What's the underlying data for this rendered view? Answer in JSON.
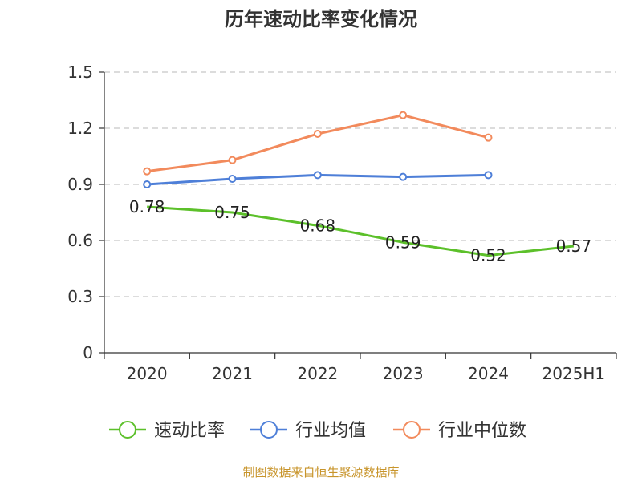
{
  "chart_data": {
    "type": "line",
    "title": "历年速动比率变化情况",
    "categories": [
      "2020",
      "2021",
      "2022",
      "2023",
      "2024",
      "2025H1"
    ],
    "ylim": [
      0,
      1.5
    ],
    "yticks": [
      "0",
      "0.3",
      "0.6",
      "0.9",
      "1.2",
      "1.5"
    ],
    "grid": true,
    "legend_position": "bottom",
    "series": [
      {
        "name": "速动比率",
        "color": "#5cc02a",
        "values": [
          0.78,
          0.75,
          0.68,
          0.59,
          0.52,
          0.57
        ],
        "show_labels": true
      },
      {
        "name": "行业均值",
        "color": "#4e7fd8",
        "values": [
          0.9,
          0.93,
          0.95,
          0.94,
          0.95,
          null
        ],
        "show_labels": false
      },
      {
        "name": "行业中位数",
        "color": "#f28a5c",
        "values": [
          0.97,
          1.03,
          1.17,
          1.27,
          1.15,
          null
        ],
        "show_labels": false
      }
    ],
    "data_labels": [
      "0.78",
      "0.75",
      "0.68",
      "0.59",
      "0.52",
      "0.57"
    ]
  },
  "footer": {
    "source": "制图数据来自恒生聚源数据库"
  }
}
